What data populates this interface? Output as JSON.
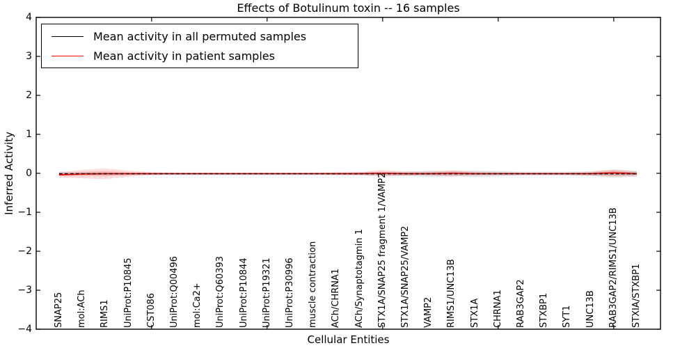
{
  "chart_data": {
    "type": "line",
    "title": "Effects of Botulinum toxin -- 16 samples",
    "xlabel": "Cellular Entities",
    "ylabel": "Inferred Activity",
    "ylim": [
      -4,
      4
    ],
    "ytick_values": [
      4,
      3,
      2,
      1,
      0,
      -1,
      -2,
      -3,
      -4
    ],
    "ytick_labels": [
      "4",
      "3",
      "2",
      "1",
      "0",
      "−1",
      "−2",
      "−3",
      "−4"
    ],
    "grid": false,
    "legend_position": "upper left",
    "categories": [
      "SNAP25",
      "mol:ACh",
      "RIMS1",
      "UniProt:P10845",
      "CST086",
      "UniProt:Q00496",
      "mol:Ca2+",
      "UniProt:Q60393",
      "UniProt:P10844",
      "UniProt:P19321",
      "UniProt:P30996",
      "muscle contraction",
      "ACh/CHRNA1",
      "ACh/Synaptotagmin 1",
      "STX1A/SNAP25 fragment 1/VAMP2",
      "STX1A/SNAP25/VAMP2",
      "VAMP2",
      "RIMS1/UNC13B",
      "STX1A",
      "CHRNA1",
      "RAB3GAP2",
      "STXBP1",
      "SYT1",
      "UNC13B",
      "RAB3GAP2/RIMS1/UNC13B",
      "STXIA/STXBP1"
    ],
    "series": [
      {
        "name": "Mean activity in all permuted samples",
        "color": "#000000",
        "line_style": "dashed",
        "values": [
          -0.01,
          -0.01,
          -0.01,
          -0.01,
          -0.01,
          -0.01,
          -0.01,
          -0.01,
          -0.01,
          -0.01,
          -0.01,
          -0.01,
          -0.01,
          -0.01,
          -0.01,
          -0.01,
          -0.01,
          -0.01,
          -0.01,
          -0.01,
          -0.01,
          -0.01,
          -0.01,
          -0.01,
          -0.01,
          -0.01
        ],
        "band": [
          0.05,
          0.04,
          0.04,
          0.03,
          0.03,
          0.03,
          0.03,
          0.03,
          0.03,
          0.03,
          0.03,
          0.03,
          0.03,
          0.04,
          0.05,
          0.06,
          0.08,
          0.07,
          0.08,
          0.07,
          0.05,
          0.05,
          0.05,
          0.06,
          0.1,
          0.08
        ],
        "band_color": "#000000",
        "band_alpha": 0.1
      },
      {
        "name": "Mean activity in patient samples",
        "color": "#ff0000",
        "line_style": "solid",
        "values": [
          -0.04,
          -0.02,
          -0.01,
          -0.01,
          -0.01,
          -0.01,
          -0.01,
          -0.01,
          -0.01,
          -0.01,
          -0.01,
          -0.01,
          -0.01,
          -0.01,
          0,
          -0.01,
          -0.01,
          0,
          -0.01,
          -0.01,
          -0.01,
          -0.01,
          -0.01,
          -0.01,
          0.01,
          -0.01
        ],
        "band": [
          0.07,
          0.11,
          0.14,
          0.08,
          0.04,
          0.03,
          0.03,
          0.03,
          0.03,
          0.03,
          0.03,
          0.03,
          0.04,
          0.04,
          0.09,
          0.05,
          0.04,
          0.08,
          0.04,
          0.03,
          0.03,
          0.03,
          0.03,
          0.05,
          0.09,
          0.05
        ],
        "band_color": "#ff0000",
        "band_alpha": 0.13
      }
    ]
  }
}
